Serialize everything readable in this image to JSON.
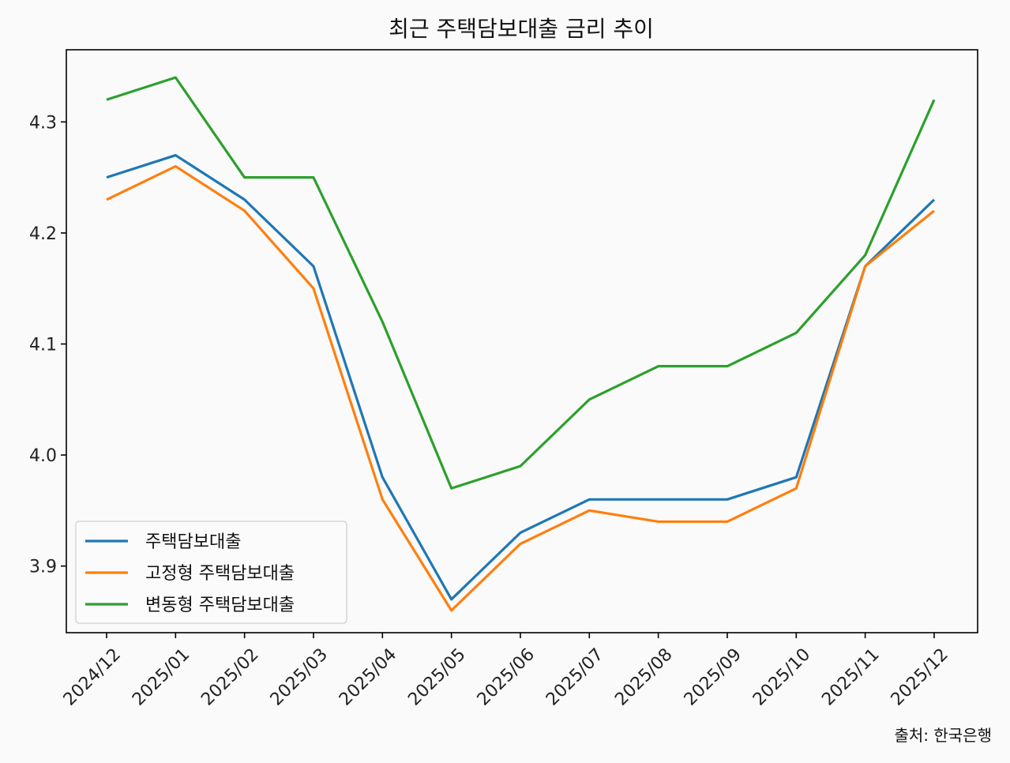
{
  "chart_data": {
    "type": "line",
    "title": "최근 주택담보대출 금리 추이",
    "xlabel": "",
    "ylabel": "",
    "categories": [
      "2024/12",
      "2025/01",
      "2025/02",
      "2025/03",
      "2025/04",
      "2025/05",
      "2025/06",
      "2025/07",
      "2025/08",
      "2025/09",
      "2025/10",
      "2025/11",
      "2025/12"
    ],
    "series": [
      {
        "name": "주택담보대출",
        "color": "#1f77b4",
        "values": [
          4.25,
          4.27,
          4.23,
          4.17,
          3.98,
          3.87,
          3.93,
          3.96,
          3.96,
          3.96,
          3.98,
          4.17,
          4.23
        ]
      },
      {
        "name": "고정형 주택담보대출",
        "color": "#ff7f0e",
        "values": [
          4.23,
          4.26,
          4.22,
          4.15,
          3.96,
          3.86,
          3.92,
          3.95,
          3.94,
          3.94,
          3.97,
          4.17,
          4.22
        ]
      },
      {
        "name": "변동형 주택담보대출",
        "color": "#2ca02c",
        "values": [
          4.32,
          4.34,
          4.25,
          4.25,
          4.12,
          3.97,
          3.99,
          4.05,
          4.08,
          4.08,
          4.11,
          4.18,
          4.32
        ]
      }
    ],
    "ylim": [
      3.84,
      4.365
    ],
    "yticks": [
      "3.9",
      "4.0",
      "4.1",
      "4.2",
      "4.3"
    ],
    "grid": false,
    "legend_position": "lower-left",
    "source_note": "출처: 한국은행"
  }
}
